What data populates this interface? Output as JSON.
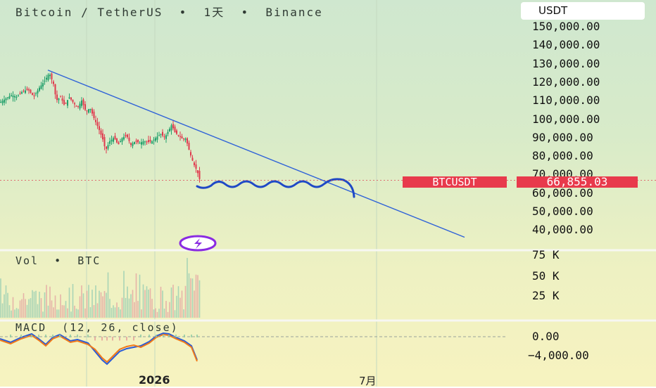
{
  "header": {
    "title": "Bitcoin / TetherUS  •  1天  •  Binance",
    "currency": "USDT"
  },
  "price_axis_labels": [
    "150,000.00",
    "140,000.00",
    "130,000.00",
    "120,000.00",
    "110,000.00",
    "100,000.00",
    "90,000.00",
    "80,000.00",
    "70,000.00",
    "60,000.00",
    "50,000.00",
    "40,000.00"
  ],
  "last_price": {
    "symbol": "BTCUSDT",
    "value": "66,855.03"
  },
  "volume_pane": {
    "label": "Vol  •  BTC",
    "axis_labels": [
      "75 K",
      "50 K",
      "25 K"
    ]
  },
  "macd_pane": {
    "label": "MACD  (12, 26, close)",
    "axis_labels": [
      "0.00",
      "−4,000.00"
    ]
  },
  "x_axis_labels": [
    "2026",
    "7月"
  ],
  "colors": {
    "up": "#22a06b",
    "down": "#e0394d",
    "trendline": "#2f62d8",
    "drawing": "#1f49c6",
    "macd": "#2a5bd7",
    "signal": "#f07a1a",
    "price_tag": "#e83a4c"
  },
  "icons": {
    "event_marker": "lightning-bolt-icon"
  },
  "chart_data": {
    "type": "candlestick",
    "symbol": "BTCUSDT",
    "interval": "1天",
    "price_range": [
      40000,
      150000
    ],
    "last_price": 66855.03,
    "price_path": [
      {
        "x": 0,
        "p": 109000
      },
      {
        "x": 8,
        "p": 111000
      },
      {
        "x": 16,
        "p": 113000
      },
      {
        "x": 24,
        "p": 112000
      },
      {
        "x": 32,
        "p": 115000
      },
      {
        "x": 40,
        "p": 116000
      },
      {
        "x": 48,
        "p": 112000
      },
      {
        "x": 56,
        "p": 117000
      },
      {
        "x": 64,
        "p": 121000
      },
      {
        "x": 70,
        "p": 125000
      },
      {
        "x": 76,
        "p": 119000
      },
      {
        "x": 80,
        "p": 110000
      },
      {
        "x": 86,
        "p": 112000
      },
      {
        "x": 92,
        "p": 107000
      },
      {
        "x": 98,
        "p": 112000
      },
      {
        "x": 104,
        "p": 109000
      },
      {
        "x": 110,
        "p": 106000
      },
      {
        "x": 116,
        "p": 110000
      },
      {
        "x": 122,
        "p": 104000
      },
      {
        "x": 128,
        "p": 106000
      },
      {
        "x": 134,
        "p": 100000
      },
      {
        "x": 140,
        "p": 95000
      },
      {
        "x": 146,
        "p": 89000
      },
      {
        "x": 150,
        "p": 83000
      },
      {
        "x": 156,
        "p": 88000
      },
      {
        "x": 162,
        "p": 90000
      },
      {
        "x": 168,
        "p": 86000
      },
      {
        "x": 174,
        "p": 90000
      },
      {
        "x": 180,
        "p": 91000
      },
      {
        "x": 186,
        "p": 86000
      },
      {
        "x": 192,
        "p": 88000
      },
      {
        "x": 198,
        "p": 87000
      },
      {
        "x": 204,
        "p": 88000
      },
      {
        "x": 210,
        "p": 87500
      },
      {
        "x": 216,
        "p": 88000
      },
      {
        "x": 222,
        "p": 90000
      },
      {
        "x": 228,
        "p": 92000
      },
      {
        "x": 234,
        "p": 90000
      },
      {
        "x": 240,
        "p": 94000
      },
      {
        "x": 244,
        "p": 97000
      },
      {
        "x": 248,
        "p": 93000
      },
      {
        "x": 254,
        "p": 91000
      },
      {
        "x": 260,
        "p": 89000
      },
      {
        "x": 264,
        "p": 89500
      },
      {
        "x": 268,
        "p": 84000
      },
      {
        "x": 272,
        "p": 79000
      },
      {
        "x": 276,
        "p": 75000
      },
      {
        "x": 280,
        "p": 72000
      },
      {
        "x": 284,
        "p": 66855
      }
    ],
    "trendline": [
      {
        "x": 68,
        "p": 126500
      },
      {
        "x": 660,
        "p": 36000
      }
    ],
    "annotation_wave_start_x": 280
  }
}
